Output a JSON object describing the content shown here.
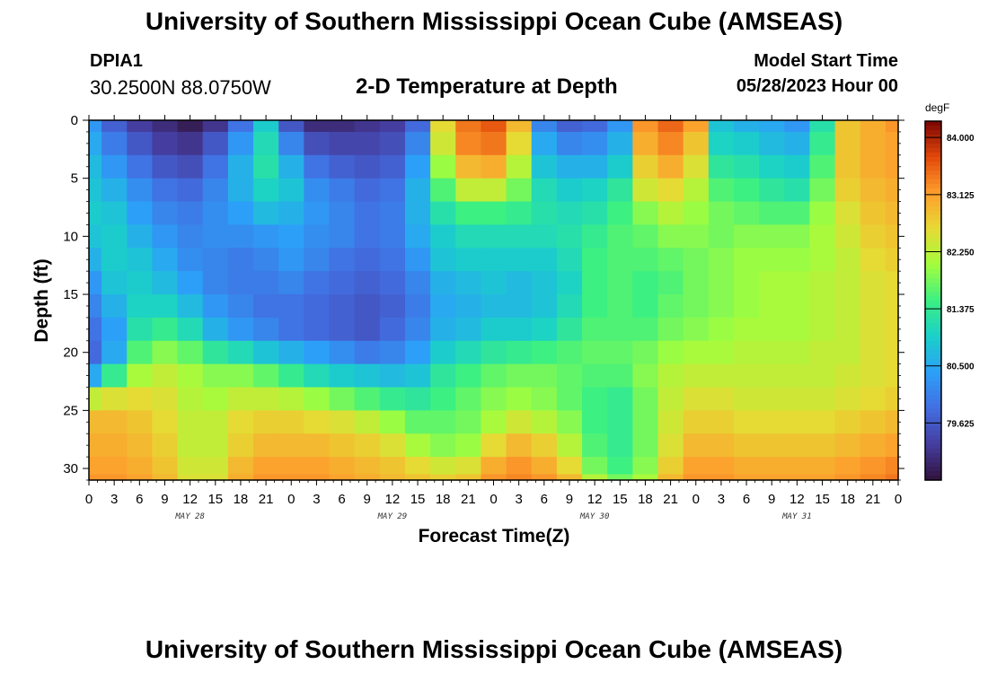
{
  "page": {
    "title": "University of Southern Mississippi Ocean Cube (AMSEAS)",
    "station_id": "DPIA1",
    "station_coords": "30.2500N  88.0750W",
    "start_label": "Model Start Time",
    "start_value": "05/28/2023 Hour 00"
  },
  "chart_data": {
    "type": "heatmap",
    "title": "2-D Temperature at Depth",
    "xlabel": "Forecast Time(Z)",
    "ylabel": "Depth (ft)",
    "colorbar_unit": "degF",
    "x_range_hours": [
      0,
      96
    ],
    "y_range_ft": [
      0,
      31
    ],
    "x_ticks": [
      {
        "h": 0,
        "label": "0"
      },
      {
        "h": 3,
        "label": "3"
      },
      {
        "h": 6,
        "label": "6"
      },
      {
        "h": 9,
        "label": "9"
      },
      {
        "h": 12,
        "label": "12"
      },
      {
        "h": 15,
        "label": "15"
      },
      {
        "h": 18,
        "label": "18"
      },
      {
        "h": 21,
        "label": "21"
      },
      {
        "h": 24,
        "label": "0"
      },
      {
        "h": 27,
        "label": "3"
      },
      {
        "h": 30,
        "label": "6"
      },
      {
        "h": 33,
        "label": "9"
      },
      {
        "h": 36,
        "label": "12"
      },
      {
        "h": 39,
        "label": "15"
      },
      {
        "h": 42,
        "label": "18"
      },
      {
        "h": 45,
        "label": "21"
      },
      {
        "h": 48,
        "label": "0"
      },
      {
        "h": 51,
        "label": "3"
      },
      {
        "h": 54,
        "label": "6"
      },
      {
        "h": 57,
        "label": "9"
      },
      {
        "h": 60,
        "label": "12"
      },
      {
        "h": 63,
        "label": "15"
      },
      {
        "h": 66,
        "label": "18"
      },
      {
        "h": 69,
        "label": "21"
      },
      {
        "h": 72,
        "label": "0"
      },
      {
        "h": 75,
        "label": "3"
      },
      {
        "h": 78,
        "label": "6"
      },
      {
        "h": 81,
        "label": "9"
      },
      {
        "h": 84,
        "label": "12"
      },
      {
        "h": 87,
        "label": "15"
      },
      {
        "h": 90,
        "label": "18"
      },
      {
        "h": 93,
        "label": "21"
      },
      {
        "h": 96,
        "label": "0"
      }
    ],
    "day_labels": [
      {
        "h": 12,
        "label": "MAY 28"
      },
      {
        "h": 36,
        "label": "MAY 29"
      },
      {
        "h": 60,
        "label": "MAY 30"
      },
      {
        "h": 84,
        "label": "MAY 31"
      }
    ],
    "y_ticks": [
      0,
      5,
      10,
      15,
      20,
      25,
      30
    ],
    "colorbar_range": [
      78.75,
      84.25
    ],
    "colorbar_ticks": [
      "84.000",
      "83.125",
      "82.250",
      "81.375",
      "80.500",
      "79.625"
    ],
    "depths_ft": [
      0,
      2,
      4,
      6,
      8,
      10,
      12,
      14,
      16,
      18,
      20,
      22,
      24,
      26,
      28,
      30,
      31
    ],
    "hours": [
      0,
      3,
      6,
      9,
      12,
      15,
      18,
      21,
      24,
      27,
      30,
      33,
      36,
      39,
      42,
      45,
      48,
      51,
      54,
      57,
      60,
      63,
      66,
      69,
      72,
      75,
      78,
      81,
      84,
      87,
      90,
      93,
      96
    ],
    "values_degF": [
      [
        80.3,
        79.7,
        79.3,
        79.1,
        78.9,
        79.2,
        79.9,
        80.9,
        79.6,
        79.1,
        79.1,
        79.2,
        79.3,
        79.8,
        82.6,
        83.4,
        83.6,
        82.9,
        80.1,
        79.7,
        79.8,
        80.3,
        83.2,
        83.5,
        83.1,
        80.8,
        80.6,
        80.5,
        80.3,
        81.2,
        82.8,
        83.0,
        83.2
      ],
      [
        80.5,
        80.0,
        79.6,
        79.3,
        79.2,
        79.6,
        80.3,
        81.1,
        80.1,
        79.5,
        79.4,
        79.4,
        79.5,
        80.1,
        82.4,
        83.3,
        83.4,
        82.6,
        80.5,
        80.1,
        80.2,
        80.6,
        83.0,
        83.3,
        82.8,
        81.0,
        80.9,
        80.7,
        80.6,
        81.4,
        82.8,
        83.0,
        83.1
      ],
      [
        80.7,
        80.3,
        79.9,
        79.6,
        79.5,
        79.9,
        80.6,
        81.2,
        80.6,
        79.9,
        79.7,
        79.6,
        79.7,
        80.4,
        82.0,
        82.9,
        83.0,
        82.2,
        80.8,
        80.6,
        80.6,
        80.9,
        82.7,
        83.0,
        82.5,
        81.3,
        81.2,
        81.0,
        80.9,
        81.6,
        82.8,
        83.0,
        83.1
      ],
      [
        80.8,
        80.6,
        80.2,
        79.9,
        79.8,
        80.1,
        80.6,
        81.0,
        80.8,
        80.2,
        80.0,
        79.8,
        79.9,
        80.6,
        81.6,
        82.3,
        82.3,
        81.8,
        81.1,
        80.9,
        81.0,
        81.3,
        82.4,
        82.6,
        82.2,
        81.6,
        81.5,
        81.3,
        81.2,
        81.8,
        82.7,
        82.9,
        83.0
      ],
      [
        80.9,
        80.8,
        80.4,
        80.1,
        80.0,
        80.2,
        80.4,
        80.7,
        80.6,
        80.3,
        80.1,
        79.9,
        80.0,
        80.6,
        81.2,
        81.5,
        81.5,
        81.4,
        81.2,
        81.1,
        81.2,
        81.5,
        81.9,
        82.2,
        82.0,
        81.8,
        81.7,
        81.6,
        81.6,
        82.0,
        82.5,
        82.8,
        82.9
      ],
      [
        80.8,
        80.9,
        80.6,
        80.3,
        80.1,
        80.2,
        80.2,
        80.3,
        80.4,
        80.2,
        80.1,
        79.9,
        80.0,
        80.5,
        80.9,
        81.1,
        81.1,
        81.1,
        81.1,
        81.2,
        81.4,
        81.6,
        81.7,
        81.9,
        81.9,
        81.8,
        81.9,
        81.9,
        81.9,
        82.1,
        82.4,
        82.7,
        82.8
      ],
      [
        80.6,
        80.9,
        80.8,
        80.5,
        80.2,
        80.1,
        80.0,
        80.1,
        80.3,
        80.1,
        79.9,
        79.8,
        79.9,
        80.3,
        80.8,
        80.9,
        80.9,
        80.9,
        80.9,
        81.1,
        81.5,
        81.6,
        81.6,
        81.7,
        81.8,
        81.9,
        82.0,
        82.0,
        82.0,
        82.1,
        82.3,
        82.6,
        82.7
      ],
      [
        80.3,
        80.8,
        80.9,
        80.7,
        80.4,
        80.1,
        80.0,
        80.0,
        80.1,
        79.9,
        79.8,
        79.7,
        79.8,
        80.1,
        80.6,
        80.7,
        80.8,
        80.7,
        80.8,
        81.0,
        81.5,
        81.6,
        81.5,
        81.6,
        81.8,
        81.9,
        82.0,
        82.1,
        82.1,
        82.2,
        82.3,
        82.5,
        82.6
      ],
      [
        80.1,
        80.6,
        81.0,
        81.0,
        80.7,
        80.3,
        80.1,
        79.9,
        79.9,
        79.8,
        79.7,
        79.6,
        79.7,
        80.0,
        80.5,
        80.6,
        80.7,
        80.7,
        80.8,
        81.1,
        81.5,
        81.6,
        81.5,
        81.7,
        81.8,
        81.9,
        82.0,
        82.1,
        82.1,
        82.2,
        82.3,
        82.5,
        82.6
      ],
      [
        79.9,
        80.4,
        81.2,
        81.4,
        81.1,
        80.6,
        80.3,
        80.1,
        79.9,
        79.8,
        79.7,
        79.6,
        79.8,
        80.1,
        80.6,
        80.7,
        80.9,
        80.9,
        81.0,
        81.3,
        81.6,
        81.6,
        81.6,
        81.8,
        81.9,
        82.0,
        82.1,
        82.1,
        82.1,
        82.2,
        82.3,
        82.5,
        82.6
      ],
      [
        79.8,
        80.5,
        81.6,
        81.9,
        81.7,
        81.3,
        81.1,
        80.8,
        80.6,
        80.4,
        80.2,
        80.0,
        80.1,
        80.4,
        80.9,
        81.1,
        81.3,
        81.4,
        81.5,
        81.6,
        81.7,
        81.7,
        81.8,
        82.0,
        82.1,
        82.1,
        82.2,
        82.2,
        82.2,
        82.3,
        82.3,
        82.5,
        82.6
      ],
      [
        80.5,
        81.4,
        82.1,
        82.3,
        82.1,
        81.9,
        81.9,
        81.7,
        81.4,
        81.1,
        80.9,
        80.8,
        80.7,
        80.8,
        81.3,
        81.5,
        81.7,
        81.8,
        81.8,
        81.7,
        81.6,
        81.6,
        81.9,
        82.2,
        82.3,
        82.3,
        82.3,
        82.3,
        82.3,
        82.3,
        82.4,
        82.5,
        82.6
      ],
      [
        82.3,
        82.5,
        82.6,
        82.5,
        82.2,
        82.1,
        82.3,
        82.3,
        82.2,
        82.0,
        81.8,
        81.6,
        81.4,
        81.3,
        81.5,
        81.7,
        81.9,
        82.0,
        81.9,
        81.7,
        81.5,
        81.4,
        81.8,
        82.3,
        82.5,
        82.5,
        82.4,
        82.4,
        82.4,
        82.4,
        82.5,
        82.6,
        82.7
      ],
      [
        82.9,
        82.9,
        82.8,
        82.6,
        82.3,
        82.3,
        82.6,
        82.7,
        82.7,
        82.6,
        82.5,
        82.3,
        82.0,
        81.7,
        81.7,
        81.8,
        82.1,
        82.4,
        82.2,
        81.9,
        81.5,
        81.4,
        81.8,
        82.4,
        82.7,
        82.7,
        82.6,
        82.6,
        82.6,
        82.6,
        82.7,
        82.8,
        82.9
      ],
      [
        83.0,
        83.0,
        82.9,
        82.7,
        82.3,
        82.3,
        82.7,
        82.9,
        82.9,
        82.9,
        82.8,
        82.7,
        82.5,
        82.1,
        81.9,
        82.0,
        82.6,
        82.9,
        82.7,
        82.2,
        81.6,
        81.4,
        81.8,
        82.5,
        82.9,
        82.9,
        82.8,
        82.8,
        82.8,
        82.8,
        82.9,
        83.0,
        83.1
      ],
      [
        83.1,
        83.1,
        83.0,
        82.8,
        82.4,
        82.4,
        82.9,
        83.1,
        83.1,
        83.1,
        83.0,
        82.9,
        82.8,
        82.6,
        82.4,
        82.5,
        83.0,
        83.2,
        83.0,
        82.6,
        81.8,
        81.5,
        81.9,
        82.7,
        83.1,
        83.1,
        83.0,
        83.0,
        83.0,
        83.0,
        83.1,
        83.2,
        83.3
      ],
      [
        83.2,
        83.2,
        83.1,
        82.9,
        82.5,
        82.5,
        83.0,
        83.2,
        83.2,
        83.2,
        83.1,
        83.0,
        82.9,
        82.8,
        82.7,
        82.8,
        83.2,
        83.3,
        83.2,
        82.9,
        82.2,
        81.8,
        82.1,
        82.9,
        83.2,
        83.2,
        83.1,
        83.1,
        83.1,
        83.1,
        83.2,
        83.3,
        83.4
      ]
    ]
  }
}
